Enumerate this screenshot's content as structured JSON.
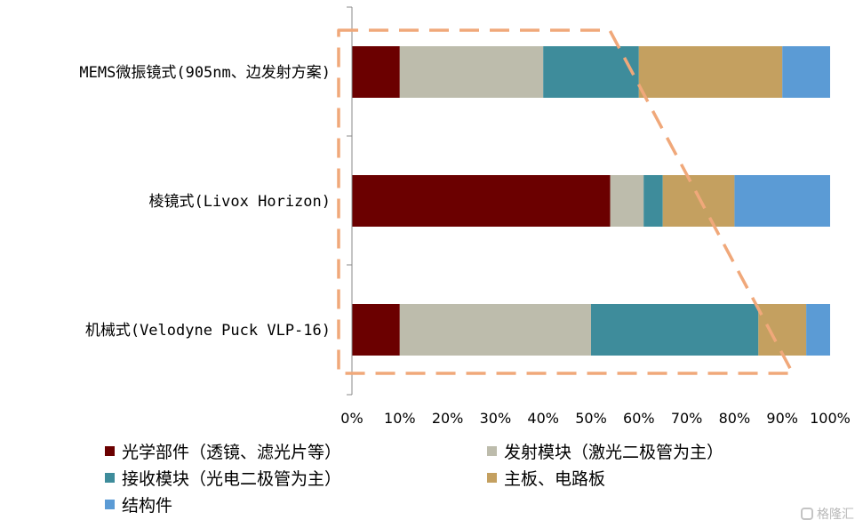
{
  "chart_data": {
    "type": "bar",
    "orientation": "horizontal",
    "stacked": true,
    "percent": true,
    "categories": [
      "MEMS微振镜式(905nm、边发射方案)",
      "棱镜式(Livox Horizon)",
      "机械式(Velodyne Puck VLP-16)"
    ],
    "series": [
      {
        "name": "光学部件（透镜、滤光片等）",
        "color": "#6b0000",
        "values": [
          10,
          54,
          10
        ]
      },
      {
        "name": "发射模块（激光二极管为主）",
        "color": "#bdbcac",
        "values": [
          30,
          7,
          40
        ]
      },
      {
        "name": "接收模块（光电二极管为主）",
        "color": "#3e8c9b",
        "values": [
          20,
          4,
          35
        ]
      },
      {
        "name": "主板、电路板",
        "color": "#c4a060",
        "values": [
          30,
          15,
          10
        ]
      },
      {
        "name": "结构件",
        "color": "#5b9bd5",
        "values": [
          10,
          20,
          5
        ]
      }
    ],
    "xlim": [
      0,
      100
    ],
    "x_ticks": [
      "0%",
      "10%",
      "20%",
      "30%",
      "40%",
      "50%",
      "60%",
      "70%",
      "80%",
      "90%",
      "100%"
    ],
    "grid": false,
    "legend_position": "bottom",
    "annotation": {
      "shape": "dashed-trapezoid",
      "color": "#f0a87a"
    }
  },
  "watermark": {
    "text": "格隆汇"
  }
}
